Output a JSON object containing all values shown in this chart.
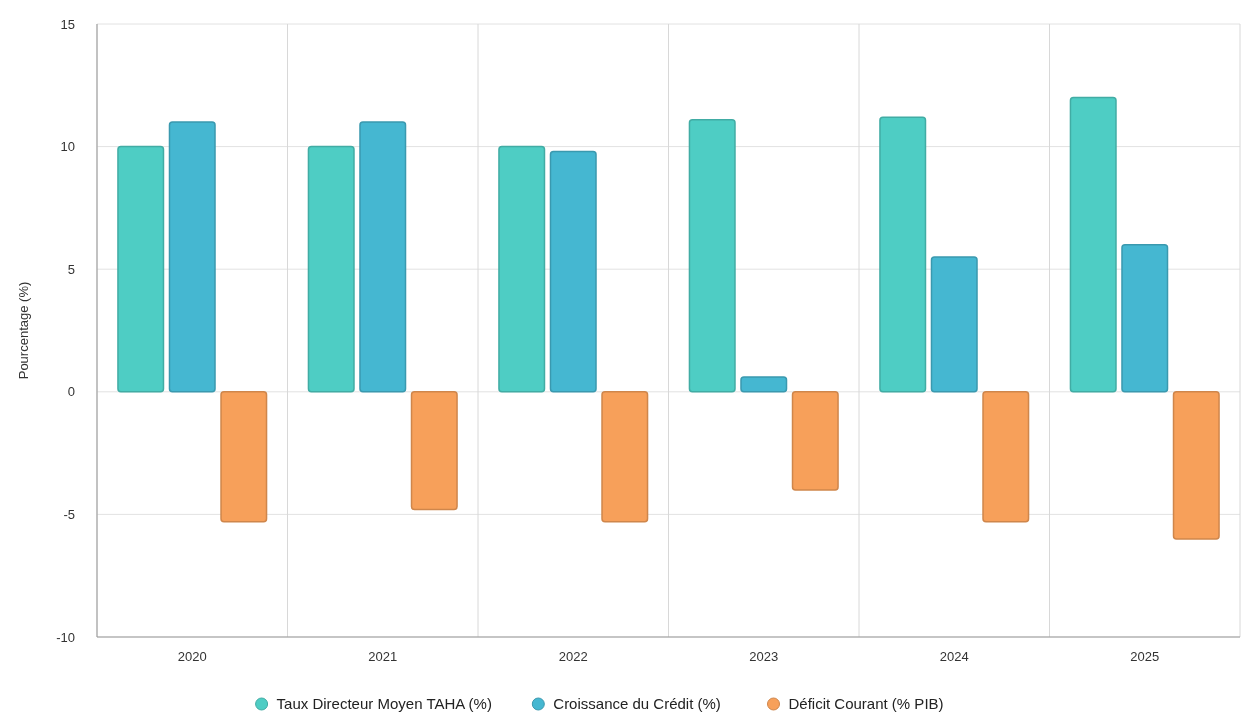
{
  "chart_data": {
    "type": "bar",
    "ylabel": "Pourcentage (%)",
    "categories": [
      "2020",
      "2021",
      "2022",
      "2023",
      "2024",
      "2025"
    ],
    "series": [
      {
        "name": "Taux Directeur Moyen TAHA (%)",
        "color": "#4ecdc4",
        "values": [
          10,
          10,
          10,
          11.1,
          11.2,
          12
        ]
      },
      {
        "name": "Croissance du Crédit (%)",
        "color": "#45b7d1",
        "values": [
          11,
          11,
          9.8,
          0.6,
          5.5,
          6
        ]
      },
      {
        "name": "Déficit Courant (% PIB)",
        "color": "#f7a05a",
        "values": [
          -5.3,
          -4.8,
          -5.3,
          -4,
          -5.3,
          -6
        ]
      }
    ],
    "ylim": [
      -10,
      15
    ],
    "yticks": [
      -10,
      -5,
      0,
      5,
      10,
      15
    ],
    "grid": true,
    "legend": "bottom",
    "marker": "circle"
  }
}
